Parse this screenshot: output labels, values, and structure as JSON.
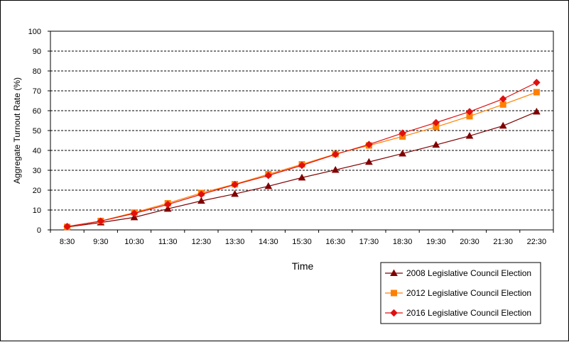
{
  "chart_data": {
    "type": "line",
    "xlabel": "Time",
    "ylabel": "Aggregate  Turnout  Rate  (%)",
    "ylim": [
      0,
      100
    ],
    "yticks": [
      0,
      10,
      20,
      30,
      40,
      50,
      60,
      70,
      80,
      90,
      100
    ],
    "grid": "horizontal dashed",
    "legend_position": "bottom-right",
    "categories": [
      "8:30",
      "9:30",
      "10:30",
      "11:30",
      "12:30",
      "13:30",
      "14:30",
      "15:30",
      "16:30",
      "17:30",
      "18:30",
      "19:30",
      "20:30",
      "21:30",
      "22:30"
    ],
    "series": [
      {
        "name": "2008 Legislative Council Election",
        "color": "#800000",
        "marker": "triangle",
        "values": [
          1.4,
          3.7,
          6.3,
          10.6,
          14.6,
          18.1,
          22.0,
          26.3,
          30.2,
          34.2,
          38.4,
          42.8,
          47.3,
          52.4,
          59.5
        ]
      },
      {
        "name": "2012 Legislative Council Election",
        "color": "#FF8000",
        "marker": "square",
        "values": [
          1.5,
          4.5,
          8.7,
          13.4,
          18.6,
          23.0,
          28.0,
          33.0,
          38.2,
          42.5,
          47.0,
          51.8,
          57.2,
          63.1,
          69.3
        ]
      },
      {
        "name": "2016 Legislative Council Election",
        "color": "#E01010",
        "marker": "diamond",
        "values": [
          1.7,
          4.4,
          8.3,
          12.8,
          17.9,
          22.8,
          27.4,
          32.5,
          38.0,
          43.0,
          48.7,
          54.0,
          59.5,
          65.9,
          74.2
        ]
      }
    ]
  }
}
